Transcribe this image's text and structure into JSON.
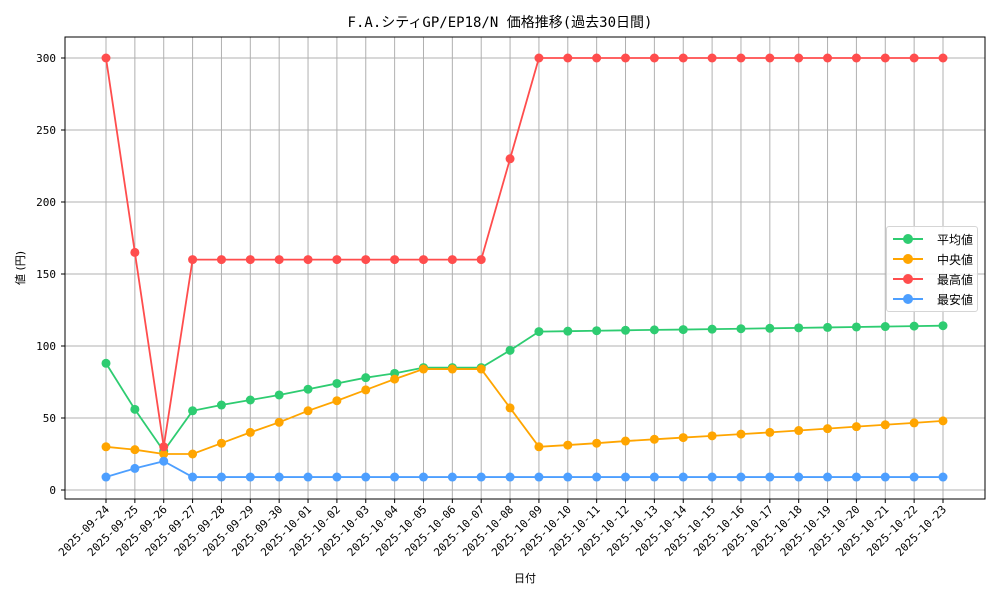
{
  "chart_data": {
    "type": "line",
    "title": "F.A.シティGP/EP18/N 価格推移(過去30日間)",
    "xlabel": "日付",
    "ylabel": "値 (円)",
    "ylim": [
      -10,
      315
    ],
    "yticks": [
      0,
      50,
      100,
      150,
      200,
      250,
      300
    ],
    "grid": true,
    "legend_position": "center right",
    "x": [
      "2025-09-24",
      "2025-09-25",
      "2025-09-26",
      "2025-09-27",
      "2025-09-28",
      "2025-09-29",
      "2025-09-30",
      "2025-10-01",
      "2025-10-02",
      "2025-10-03",
      "2025-10-04",
      "2025-10-05",
      "2025-10-06",
      "2025-10-07",
      "2025-10-08",
      "2025-10-09",
      "2025-10-10",
      "2025-10-11",
      "2025-10-12",
      "2025-10-13",
      "2025-10-14",
      "2025-10-15",
      "2025-10-16",
      "2025-10-17",
      "2025-10-18",
      "2025-10-19",
      "2025-10-20",
      "2025-10-21",
      "2025-10-22",
      "2025-10-23"
    ],
    "series": [
      {
        "name": "平均値",
        "color": "#2ecc71",
        "values": [
          88,
          56,
          27,
          55,
          59,
          62.5,
          66,
          70,
          74,
          78,
          81,
          85,
          85,
          85,
          97,
          110,
          110.3,
          110.6,
          110.9,
          111.2,
          111.4,
          111.7,
          112,
          112.3,
          112.6,
          112.9,
          113.2,
          113.5,
          113.8,
          114.1
        ]
      },
      {
        "name": "中央値",
        "color": "#ffa500",
        "values": [
          30,
          28,
          25,
          25,
          32.5,
          40,
          47,
          55,
          62,
          69.5,
          77,
          84,
          84,
          84,
          57,
          30,
          31.2,
          32.5,
          34,
          35.2,
          36.4,
          37.6,
          38.8,
          40,
          41.3,
          42.6,
          44,
          45.3,
          46.6,
          48
        ]
      },
      {
        "name": "最高値",
        "color": "#ff4d4d",
        "values": [
          300,
          165,
          30,
          160,
          160,
          160,
          160,
          160,
          160,
          160,
          160,
          160,
          160,
          160,
          230,
          300,
          300,
          300,
          300,
          300,
          300,
          300,
          300,
          300,
          300,
          300,
          300,
          300,
          300,
          300
        ]
      },
      {
        "name": "最安値",
        "color": "#4d9fff",
        "values": [
          9,
          15,
          20,
          9,
          9,
          9,
          9,
          9,
          9,
          9,
          9,
          9,
          9,
          9,
          9,
          9,
          9,
          9,
          9,
          9,
          9,
          9,
          9,
          9,
          9,
          9,
          9,
          9,
          9,
          9
        ]
      }
    ]
  }
}
